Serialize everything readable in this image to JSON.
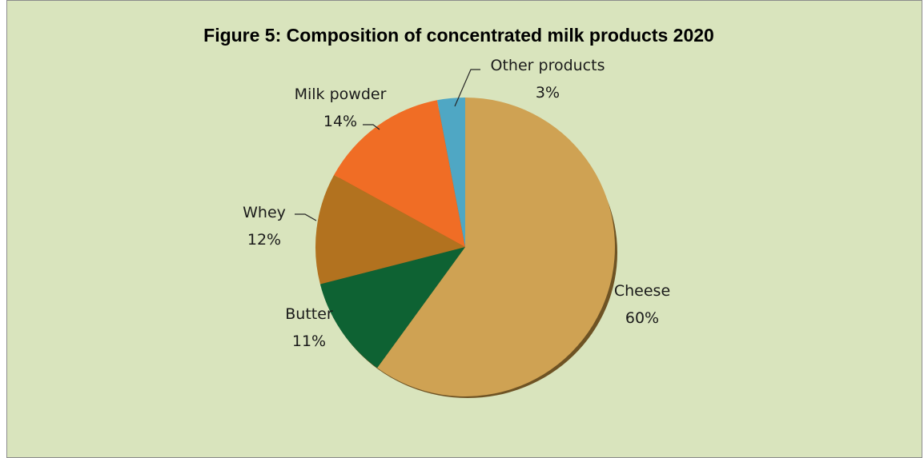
{
  "chart_data": {
    "type": "pie",
    "title": "Figure 5: Composition of concentrated milk products 2020",
    "slices": [
      {
        "label": "Cheese",
        "value": 60,
        "value_label": "60%",
        "color": "#cfa253"
      },
      {
        "label": "Butter",
        "value": 11,
        "value_label": "11%",
        "color": "#0e6233"
      },
      {
        "label": "Whey",
        "value": 12,
        "value_label": "12%",
        "color": "#b2721f"
      },
      {
        "label": "Milk powder",
        "value": 14,
        "value_label": "14%",
        "color": "#f06d25"
      },
      {
        "label": "Other products",
        "value": 3,
        "value_label": "3%",
        "color": "#4fa7c4"
      }
    ]
  },
  "background_color": "#d9e4bd"
}
